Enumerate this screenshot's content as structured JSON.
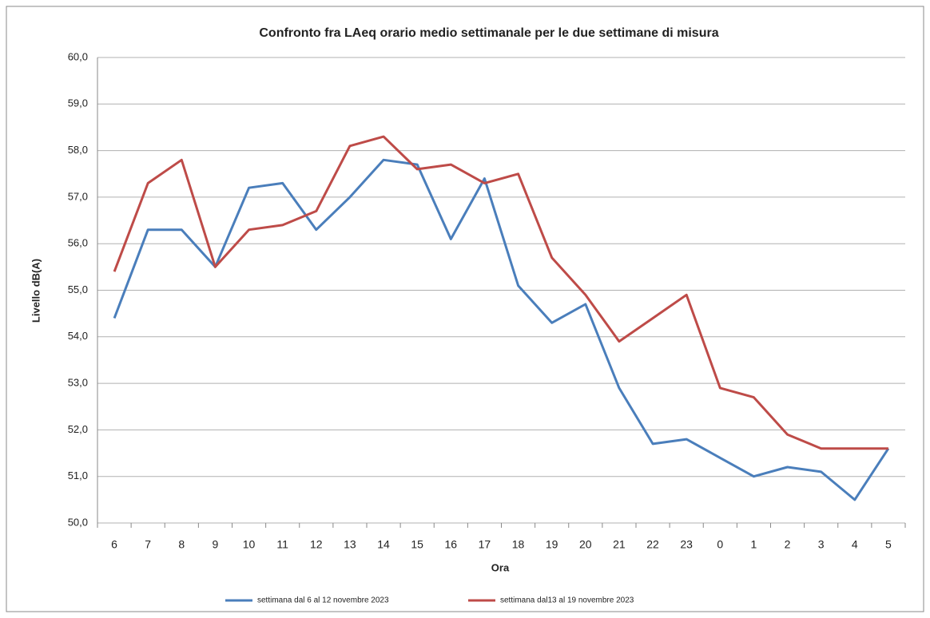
{
  "chart_data": {
    "type": "line",
    "title": "Confronto fra LAeq orario medio settimanale per le due settimane di misura",
    "x_label": "Ora",
    "y_label": "Livello dB(A)",
    "categories": [
      "6",
      "7",
      "8",
      "9",
      "10",
      "11",
      "12",
      "13",
      "14",
      "15",
      "16",
      "17",
      "18",
      "19",
      "20",
      "21",
      "22",
      "23",
      "0",
      "1",
      "2",
      "3",
      "4",
      "5"
    ],
    "series": [
      {
        "name": "settimana dal 6 al 12 novembre 2023",
        "color": "#4a7ebb",
        "values": [
          54.4,
          56.3,
          56.3,
          55.5,
          57.2,
          57.3,
          56.3,
          57.0,
          57.8,
          57.7,
          56.1,
          57.4,
          55.1,
          54.3,
          54.7,
          52.9,
          51.7,
          51.8,
          51.4,
          51.0,
          51.2,
          51.1,
          50.5,
          51.6
        ]
      },
      {
        "name": "settimana dal13 al 19 novembre 2023",
        "color": "#be4b48",
        "values": [
          55.4,
          57.3,
          57.8,
          55.5,
          56.3,
          56.4,
          56.7,
          58.1,
          58.3,
          57.6,
          57.7,
          57.3,
          57.5,
          55.7,
          54.9,
          53.9,
          54.4,
          54.9,
          52.9,
          52.7,
          51.9,
          51.6,
          51.6,
          51.6
        ]
      }
    ],
    "ylim": [
      50,
      60
    ],
    "yticks": [
      {
        "value": 50,
        "label": "50,0"
      },
      {
        "value": 51,
        "label": "51,0"
      },
      {
        "value": 52,
        "label": "52,0"
      },
      {
        "value": 53,
        "label": "53,0"
      },
      {
        "value": 54,
        "label": "54,0"
      },
      {
        "value": 55,
        "label": "55,0"
      },
      {
        "value": 56,
        "label": "56,0"
      },
      {
        "value": 57,
        "label": "57,0"
      },
      {
        "value": 58,
        "label": "58,0"
      },
      {
        "value": 59,
        "label": "59,0"
      },
      {
        "value": 60,
        "label": "60,0"
      }
    ],
    "grid": true,
    "legend": "bottom"
  }
}
